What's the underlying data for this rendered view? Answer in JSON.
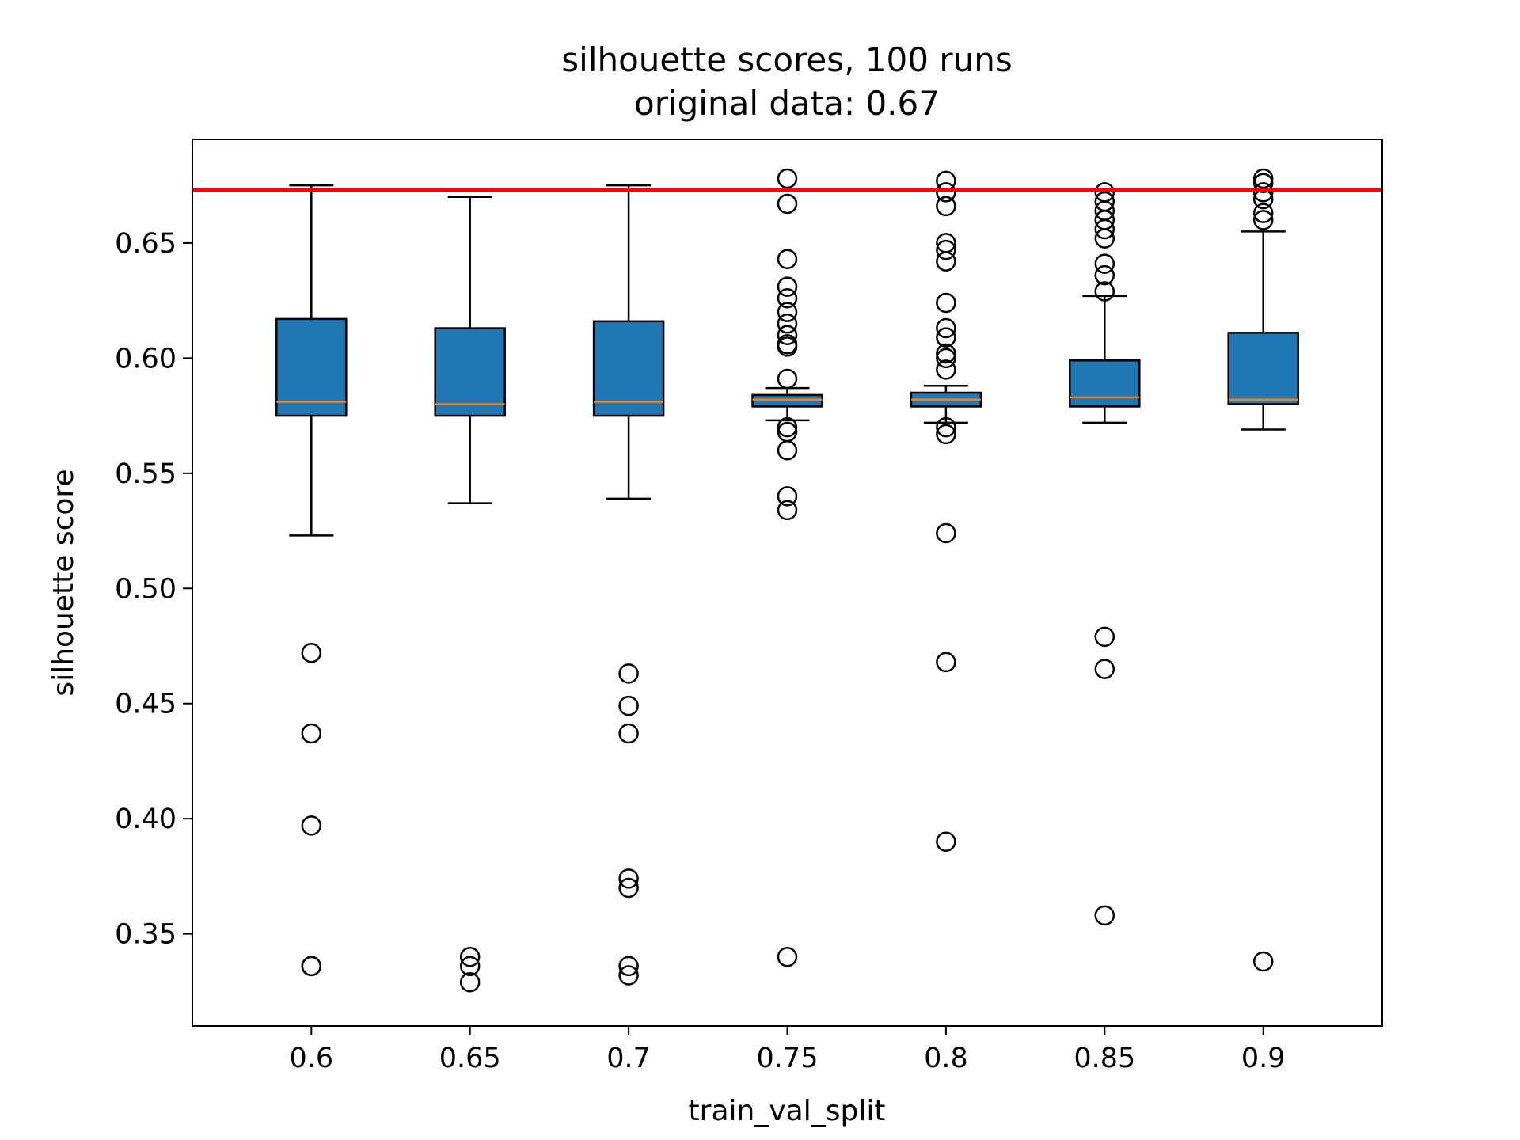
{
  "chart_data": {
    "type": "box",
    "title": "silhouette scores, 100 runs",
    "subtitle": "original data: 0.67",
    "xlabel": "train_val_split",
    "ylabel": "silhouette score",
    "categories": [
      "0.6",
      "0.65",
      "0.7",
      "0.75",
      "0.8",
      "0.85",
      "0.9"
    ],
    "ylim": [
      0.31,
      0.695
    ],
    "yticks": [
      "0.35",
      "0.40",
      "0.45",
      "0.50",
      "0.55",
      "0.60",
      "0.65"
    ],
    "reference_line": {
      "value": 0.673,
      "color": "#ff0000"
    },
    "box_color": "#1f77b4",
    "median_color": "#ff7f0e",
    "grid": false,
    "boxes": [
      {
        "category": "0.6",
        "whisker_low": 0.523,
        "q1": 0.575,
        "median": 0.581,
        "q3": 0.617,
        "whisker_high": 0.675,
        "outliers": [
          0.472,
          0.437,
          0.397,
          0.336,
          0.336
        ]
      },
      {
        "category": "0.65",
        "whisker_low": 0.537,
        "q1": 0.575,
        "median": 0.58,
        "q3": 0.613,
        "whisker_high": 0.67,
        "outliers": [
          0.34,
          0.336,
          0.329
        ]
      },
      {
        "category": "0.7",
        "whisker_low": 0.539,
        "q1": 0.575,
        "median": 0.581,
        "q3": 0.616,
        "whisker_high": 0.675,
        "outliers": [
          0.463,
          0.449,
          0.437,
          0.374,
          0.37,
          0.336,
          0.332
        ]
      },
      {
        "category": "0.75",
        "whisker_low": 0.573,
        "q1": 0.579,
        "median": 0.582,
        "q3": 0.584,
        "whisker_high": 0.587,
        "outliers": [
          0.678,
          0.667,
          0.643,
          0.631,
          0.626,
          0.62,
          0.615,
          0.61,
          0.606,
          0.605,
          0.591,
          0.57,
          0.568,
          0.56,
          0.54,
          0.534,
          0.34
        ]
      },
      {
        "category": "0.8",
        "whisker_low": 0.572,
        "q1": 0.579,
        "median": 0.582,
        "q3": 0.585,
        "whisker_high": 0.588,
        "outliers": [
          0.677,
          0.672,
          0.666,
          0.65,
          0.647,
          0.642,
          0.624,
          0.613,
          0.609,
          0.602,
          0.6,
          0.595,
          0.57,
          0.567,
          0.524,
          0.468,
          0.39
        ]
      },
      {
        "category": "0.85",
        "whisker_low": 0.572,
        "q1": 0.579,
        "median": 0.583,
        "q3": 0.599,
        "whisker_high": 0.627,
        "outliers": [
          0.672,
          0.668,
          0.664,
          0.66,
          0.656,
          0.652,
          0.641,
          0.636,
          0.629,
          0.479,
          0.465,
          0.358
        ]
      },
      {
        "category": "0.9",
        "whisker_low": 0.569,
        "q1": 0.58,
        "median": 0.582,
        "q3": 0.611,
        "whisker_high": 0.655,
        "outliers": [
          0.678,
          0.676,
          0.672,
          0.669,
          0.663,
          0.66,
          0.338
        ]
      }
    ]
  }
}
